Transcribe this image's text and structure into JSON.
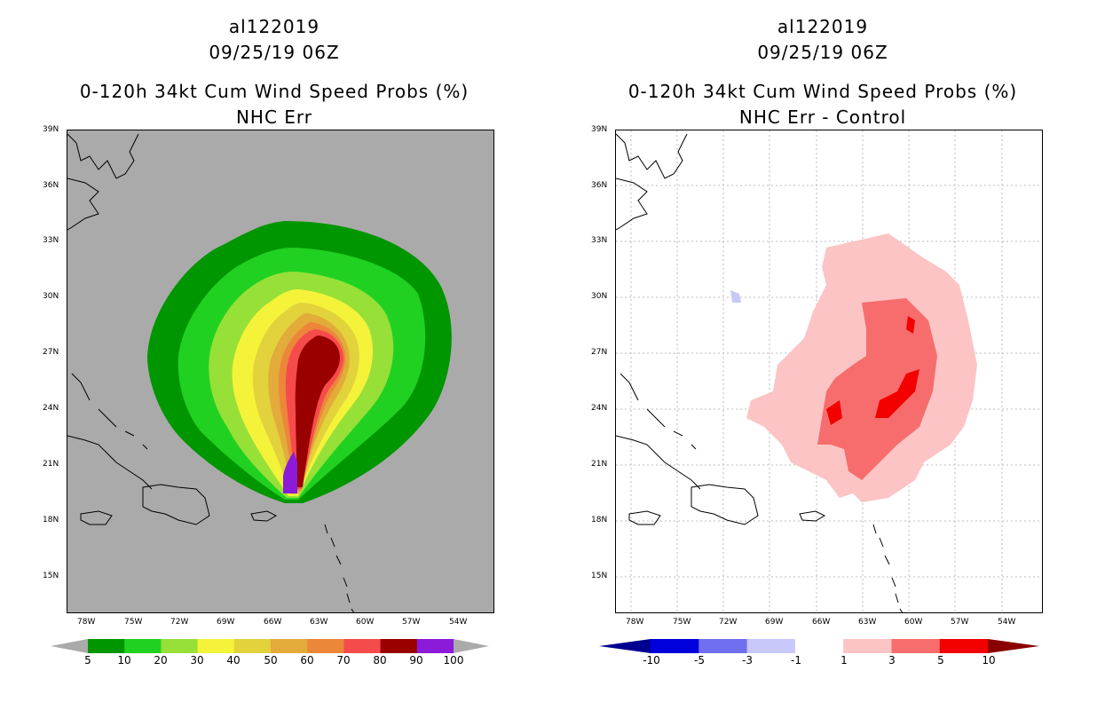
{
  "left_panel": {
    "title_line1": "al122019",
    "title_line2": "09/25/19 06Z",
    "title_line3": "0-120h 34kt Cum Wind Speed Probs (%)",
    "title_line4": "NHC Err",
    "background_color": "#aaaaaa",
    "colorbar_labels": [
      "5",
      "10",
      "20",
      "30",
      "40",
      "50",
      "60",
      "70",
      "80",
      "90",
      "100"
    ],
    "colorbar_colors": [
      "#009600",
      "#21d121",
      "#97e038",
      "#f4f339",
      "#e2d23b",
      "#e2ab3a",
      "#ec873a",
      "#f64b4b",
      "#9a0000",
      "#8c1ad9"
    ],
    "colorbar_end_color": "#aaaaaa"
  },
  "right_panel": {
    "title_line1": "al122019",
    "title_line2": "09/25/19 06Z",
    "title_line3": "0-120h 34kt Cum Wind Speed Probs (%)",
    "title_line4": "NHC Err - Control",
    "background_color": "#ffffff",
    "colorbar_labels": [
      "-10",
      "-5",
      "-3",
      "-1",
      "1",
      "3",
      "5",
      "10"
    ],
    "colorbar_colors": [
      "#0000dd",
      "#6f6fef",
      "#c8c8fa",
      "#ffffff",
      "#fcc4c4",
      "#f76d6d",
      "#f30000"
    ],
    "colorbar_left_end": "#000090",
    "colorbar_right_end": "#8a0000"
  },
  "axes": {
    "lat_labels": [
      "39N",
      "36N",
      "33N",
      "30N",
      "27N",
      "24N",
      "21N",
      "18N",
      "15N"
    ],
    "lon_labels": [
      "78W",
      "75W",
      "72W",
      "69W",
      "66W",
      "63W",
      "60W",
      "57W",
      "54W"
    ]
  }
}
